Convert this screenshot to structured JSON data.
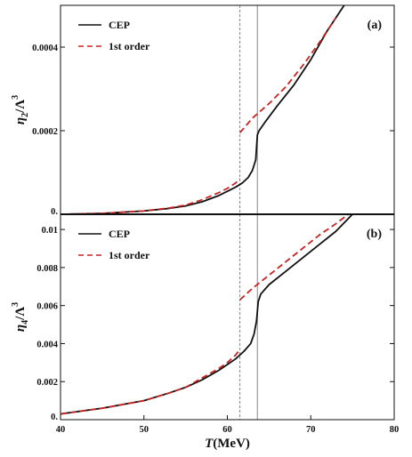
{
  "chart_data": [
    {
      "type": "line",
      "panel_label": "(a)",
      "ylabel": "η2/Λ3",
      "ylabel_main": "η",
      "ylabel_sub": "2",
      "ylabel_rest": "/Λ",
      "ylabel_sup": "3",
      "xlim": [
        40,
        80
      ],
      "ylim": [
        0,
        0.0005
      ],
      "y_ticks": [
        0,
        0.0002,
        0.0004
      ],
      "y_tick_labels": [
        "0.",
        "0.0002",
        "0.0004"
      ],
      "vlines": [
        {
          "x": 61.5,
          "color": "#ff5555",
          "style": "dashed"
        },
        {
          "x": 63.6,
          "color": "#888888",
          "style": "solid"
        }
      ],
      "legend": {
        "position": "top-left",
        "entries": [
          "CEP",
          "1st order"
        ]
      },
      "series": [
        {
          "name": "CEP",
          "color": "#111111",
          "style": "solid",
          "x": [
            40,
            45,
            50,
            53,
            55,
            57,
            59,
            60,
            61,
            61.8,
            62.5,
            63,
            63.4,
            63.6,
            63.8,
            64.5,
            66,
            68,
            70,
            72,
            74
          ],
          "y": [
            0,
            2e-06,
            8e-06,
            1.4e-05,
            2e-05,
            3e-05,
            4.5e-05,
            5.5e-05,
            6.5e-05,
            7.5e-05,
            8.8e-05,
            0.000105,
            0.00013,
            0.00019,
            0.0002,
            0.00022,
            0.00026,
            0.00031,
            0.00037,
            0.00044,
            0.0005
          ]
        },
        {
          "name": "1st order",
          "color": "#cc2222",
          "style": "dashed",
          "x": [
            40,
            45,
            50,
            53,
            55,
            57,
            59,
            60,
            61,
            61.5
          ],
          "y": [
            0,
            2e-06,
            8e-06,
            1.5e-05,
            2.2e-05,
            3.5e-05,
            5.2e-05,
            6.2e-05,
            7.5e-05,
            8.5e-05
          ]
        },
        {
          "name": "1st order",
          "color": "#cc2222",
          "style": "dashed",
          "x": [
            61.5,
            63,
            65,
            67,
            69,
            71,
            73
          ],
          "y": [
            0.000195,
            0.00023,
            0.000265,
            0.000305,
            0.000355,
            0.00041,
            0.00047
          ]
        }
      ]
    },
    {
      "type": "line",
      "panel_label": "(b)",
      "ylabel": "η4/Λ3",
      "ylabel_main": "η",
      "ylabel_sub": "4",
      "ylabel_rest": "/Λ",
      "ylabel_sup": "3",
      "xlabel": "T(MeV)",
      "xlabel_main": "T",
      "xlabel_rest": "(MeV)",
      "xlim": [
        40,
        80
      ],
      "x_ticks": [
        40,
        50,
        60,
        70,
        80
      ],
      "x_tick_labels": [
        "40",
        "50",
        "60",
        "70",
        "80"
      ],
      "ylim": [
        0,
        0.0108
      ],
      "y_ticks": [
        0,
        0.002,
        0.004,
        0.006,
        0.008,
        0.01
      ],
      "y_tick_labels": [
        "0.",
        "0.002",
        "0.004",
        "0.006",
        "0.008",
        "0.01"
      ],
      "vlines": [
        {
          "x": 61.5,
          "color": "#ff5555",
          "style": "dashed"
        },
        {
          "x": 63.6,
          "color": "#888888",
          "style": "solid"
        }
      ],
      "legend": {
        "position": "top-left",
        "entries": [
          "CEP",
          "1st order"
        ]
      },
      "series": [
        {
          "name": "CEP",
          "color": "#111111",
          "style": "solid",
          "x": [
            40,
            45,
            50,
            53,
            55,
            57,
            59,
            60,
            61,
            62,
            62.8,
            63.2,
            63.5,
            63.7,
            64,
            65,
            67,
            69,
            71,
            73,
            75
          ],
          "y": [
            0.0003,
            0.0006,
            0.001,
            0.0014,
            0.0017,
            0.0021,
            0.0026,
            0.0029,
            0.0032,
            0.0036,
            0.004,
            0.0045,
            0.0052,
            0.0062,
            0.0066,
            0.0071,
            0.0078,
            0.0085,
            0.0092,
            0.0099,
            0.0108
          ]
        },
        {
          "name": "1st order",
          "color": "#cc2222",
          "style": "dashed",
          "x": [
            40,
            45,
            50,
            53,
            55,
            57,
            59,
            60,
            61,
            61.5
          ],
          "y": [
            0.0003,
            0.0006,
            0.001,
            0.0014,
            0.0017,
            0.0022,
            0.0027,
            0.003,
            0.0034,
            0.0037
          ]
        },
        {
          "name": "1st order",
          "color": "#cc2222",
          "style": "dashed",
          "x": [
            61.5,
            63,
            65,
            67,
            69,
            71,
            73,
            74.5
          ],
          "y": [
            0.0063,
            0.0069,
            0.0076,
            0.0083,
            0.009,
            0.0097,
            0.0103,
            0.0108
          ]
        }
      ]
    }
  ]
}
